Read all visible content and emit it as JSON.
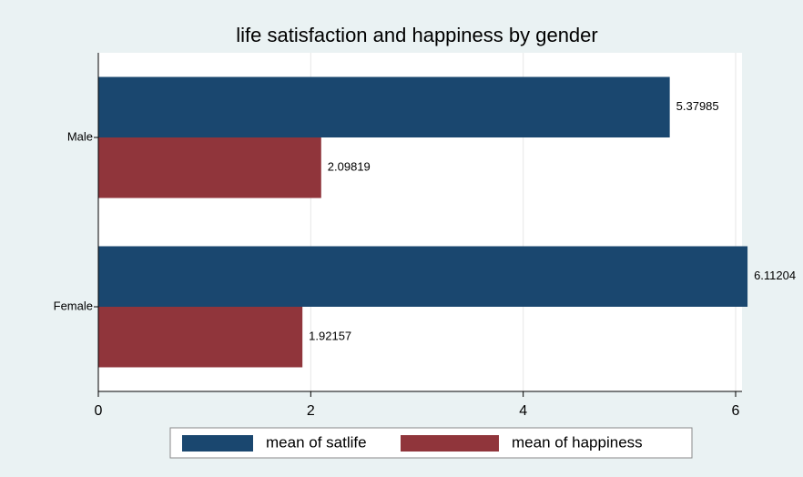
{
  "chart_data": {
    "type": "hbar",
    "title": "life satisfaction and happiness by gender",
    "categories": [
      "Male",
      "Female"
    ],
    "series": [
      {
        "name": "mean of satlife",
        "color": "#1a476f",
        "values": [
          5.37985,
          6.11204
        ]
      },
      {
        "name": "mean of happiness",
        "color": "#90353b",
        "values": [
          2.09819,
          1.92157
        ]
      }
    ],
    "xlim": [
      0,
      6.06
    ],
    "xticks": [
      0,
      2,
      4,
      6
    ],
    "grid": true
  }
}
